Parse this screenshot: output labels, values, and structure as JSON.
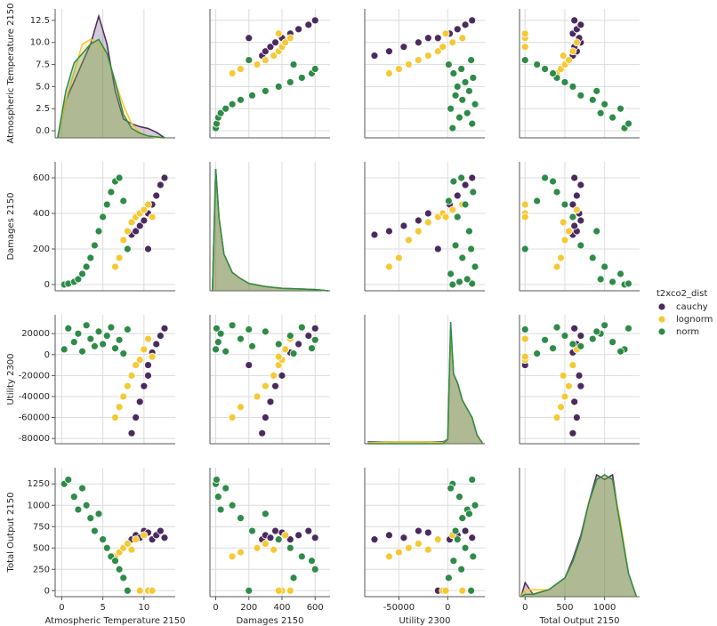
{
  "chart_data": {
    "type": "pairplot",
    "legend_title": "t2xco2_dist",
    "legend_position": "right",
    "grid": true,
    "variables": [
      {
        "label": "Atmospheric Temperature 2150",
        "lim": [
          -0.8,
          13.8
        ],
        "ticks": [
          0,
          5,
          10
        ],
        "yticks": [
          {
            "value": 0,
            "label": "0.0"
          },
          2.5,
          {
            "value": 5,
            "label": "5.0"
          },
          7.5,
          {
            "value": 10,
            "label": "10.0"
          },
          12.5
        ],
        "kde_x": [
          -0.5,
          0.5,
          1.5,
          2.5,
          3.5,
          4.5,
          5.5,
          6.5,
          7.5,
          8.5,
          9.5,
          10.5,
          11.5,
          12.5
        ]
      },
      {
        "label": "Damages 2150",
        "lim": [
          -35,
          690
        ],
        "ticks": [
          0,
          200,
          400,
          600
        ],
        "yticks": [
          0,
          200,
          400,
          600
        ],
        "kde_x": [
          -20,
          0,
          20,
          50,
          100,
          150,
          200,
          300,
          400,
          500,
          600,
          680
        ]
      },
      {
        "label": "Utility 2300",
        "lim": [
          -85000,
          38000
        ],
        "ticks": [
          -50000,
          0
        ],
        "yticks": [
          -80000,
          -60000,
          -40000,
          -20000,
          0,
          20000
        ],
        "kde_x": [
          -82000,
          -60000,
          -20000,
          -5000,
          0,
          3000,
          6000,
          10000,
          15000,
          20000,
          25000,
          30000,
          36000
        ]
      },
      {
        "label": "Total Output 2150",
        "lim": [
          -70,
          1440
        ],
        "ticks": [
          0,
          500,
          1000
        ],
        "yticks": [
          0,
          250,
          500,
          750,
          1000,
          1250
        ],
        "kde_x": [
          -50,
          0,
          100,
          300,
          500,
          600,
          700,
          800,
          900,
          1000,
          1100,
          1200,
          1300,
          1400
        ]
      }
    ],
    "series": [
      {
        "name": "cauchy",
        "color": "#4b2a5e",
        "values": [
          [
            8.5,
            9,
            9.5,
            10,
            10.5,
            11,
            11.5,
            12,
            12.5,
            10.5
          ],
          [
            280,
            300,
            330,
            360,
            400,
            450,
            500,
            560,
            600,
            200
          ],
          [
            -75000,
            -60000,
            -45000,
            -30000,
            -20000,
            2000,
            10000,
            18000,
            25000,
            -10000
          ],
          [
            600,
            650,
            620,
            700,
            680,
            600,
            650,
            700,
            620,
            0
          ]
        ],
        "kde": [
          [
            0,
            4,
            6,
            8,
            10,
            13,
            10,
            5,
            2,
            1.5,
            1.2,
            1,
            0.6,
            0
          ],
          [
            0,
            20,
            12,
            6,
            3,
            2,
            1.2,
            0.7,
            0.4,
            0.3,
            0.2,
            0
          ],
          [
            0.2,
            0.2,
            0.2,
            0.2,
            0.5,
            13,
            8,
            7,
            5,
            4,
            3,
            1,
            0
          ],
          [
            0,
            0.6,
            0.1,
            0.3,
            0.8,
            1.6,
            2.6,
            4,
            5.2,
            5,
            5.2,
            3,
            1,
            0
          ]
        ]
      },
      {
        "name": "lognorm",
        "color": "#f5c935",
        "values": [
          [
            6.5,
            7,
            7.5,
            8,
            8.5,
            9,
            9.5,
            10,
            10.5,
            11
          ],
          [
            100,
            150,
            250,
            300,
            350,
            380,
            400,
            420,
            450,
            380
          ],
          [
            -60000,
            -50000,
            -40000,
            -30000,
            -20000,
            -10000,
            -5000,
            5000,
            15000,
            -2000
          ],
          [
            400,
            450,
            500,
            550,
            480,
            600,
            0,
            650,
            0,
            0
          ]
        ],
        "kde": [
          [
            0,
            4,
            7,
            10,
            10.5,
            10,
            9,
            6,
            3.5,
            1.5,
            0.6,
            0.2,
            0,
            0
          ],
          [
            0,
            19,
            12,
            6,
            3,
            2,
            1.2,
            0.7,
            0.4,
            0.3,
            0.2,
            0
          ],
          [
            0.1,
            0.2,
            0.2,
            0.1,
            0.5,
            13,
            8,
            7,
            5,
            4,
            3,
            1,
            0
          ],
          [
            0,
            0.3,
            0.3,
            0.3,
            0.8,
            1.5,
            2.5,
            4,
            5,
            5.2,
            5,
            3.2,
            1,
            0
          ]
        ]
      },
      {
        "name": "norm",
        "color": "#2e8b48",
        "values": [
          [
            0.3,
            0.8,
            1.5,
            2,
            2.5,
            3,
            3.5,
            4,
            4.5,
            5,
            5.5,
            6,
            6.5,
            7,
            7.5,
            8
          ],
          [
            0,
            5,
            15,
            30,
            60,
            100,
            150,
            220,
            300,
            380,
            450,
            520,
            580,
            600,
            470,
            200
          ],
          [
            5000,
            25000,
            12000,
            20000,
            3000,
            28000,
            15000,
            8000,
            22000,
            10000,
            18000,
            26000,
            6000,
            14000,
            1000,
            24000
          ],
          [
            1250,
            1300,
            1100,
            950,
            1200,
            1000,
            850,
            700,
            900,
            600,
            500,
            400,
            350,
            250,
            150,
            0
          ]
        ],
        "kde": [
          [
            0,
            5,
            8,
            9,
            10,
            10.5,
            9,
            6,
            2.5,
            1,
            0.5,
            0.2,
            0.1,
            0
          ],
          [
            0,
            20,
            12,
            6,
            3,
            2,
            1.2,
            0.7,
            0.4,
            0.3,
            0.2,
            0
          ],
          [
            0,
            0,
            0,
            0,
            0.5,
            14,
            8,
            7,
            5,
            4,
            3,
            1,
            0
          ],
          [
            0,
            0.1,
            0.1,
            0.3,
            0.8,
            1.5,
            2.5,
            4,
            5,
            5.2,
            5,
            3,
            1,
            0
          ]
        ]
      }
    ]
  }
}
